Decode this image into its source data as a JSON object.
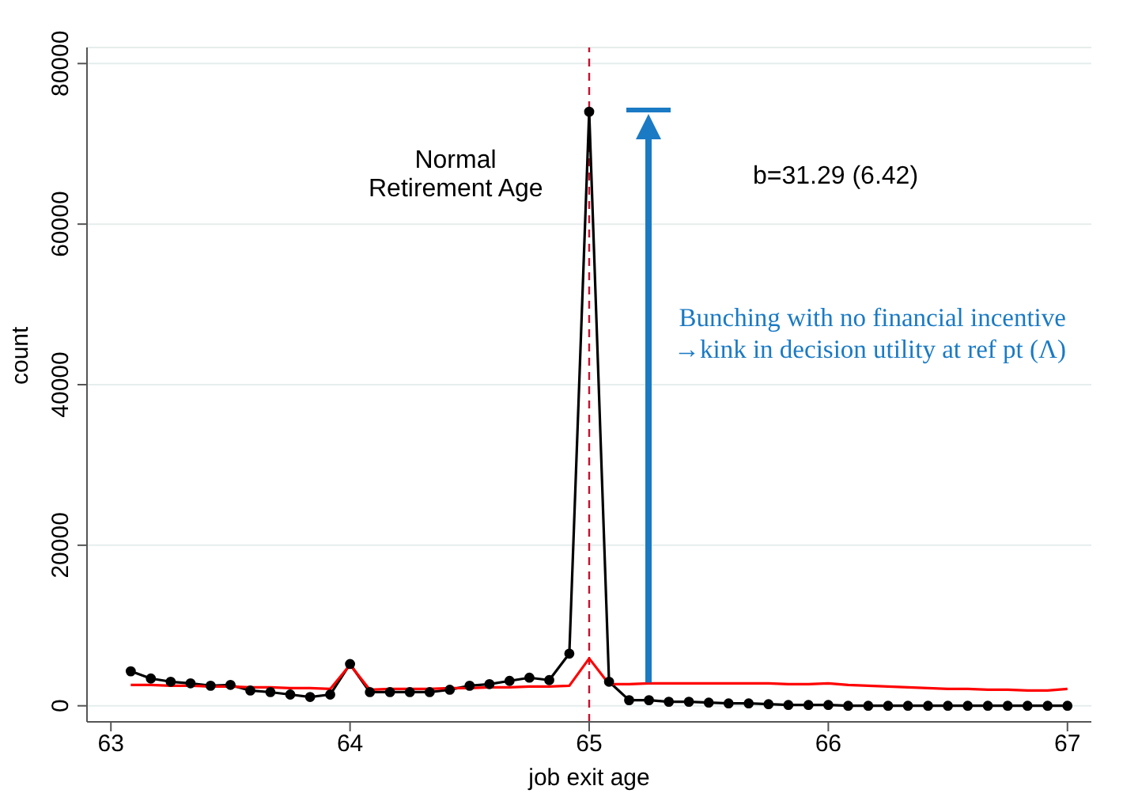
{
  "chart_data": {
    "type": "line",
    "xlabel": "job exit age",
    "ylabel": "count",
    "x": [
      63.083,
      63.167,
      63.25,
      63.333,
      63.417,
      63.5,
      63.583,
      63.667,
      63.75,
      63.833,
      63.917,
      64,
      64.083,
      64.167,
      64.25,
      64.333,
      64.417,
      64.5,
      64.583,
      64.667,
      64.75,
      64.833,
      64.917,
      65,
      65.083,
      65.167,
      65.25,
      65.333,
      65.417,
      65.5,
      65.583,
      65.667,
      65.75,
      65.833,
      65.917,
      66,
      66.083,
      66.167,
      66.25,
      66.333,
      66.417,
      66.5,
      66.583,
      66.667,
      66.75,
      66.833,
      66.917,
      67
    ],
    "series": [
      {
        "color": "#000000",
        "marker": "circle",
        "values": [
          4300,
          3400,
          3000,
          2800,
          2500,
          2600,
          1900,
          1700,
          1400,
          1100,
          1400,
          5200,
          1700,
          1700,
          1700,
          1700,
          2000,
          2500,
          2700,
          3100,
          3500,
          3200,
          6500,
          74000,
          3000,
          700,
          700,
          500,
          500,
          400,
          300,
          300,
          200,
          100,
          100,
          100,
          0,
          0,
          0,
          0,
          0,
          0,
          0,
          0,
          0,
          0,
          0,
          0
        ]
      },
      {
        "color": "#ff0000",
        "marker": "none",
        "values": [
          2600,
          2600,
          2500,
          2500,
          2400,
          2400,
          2300,
          2300,
          2200,
          2200,
          2100,
          5100,
          2000,
          2100,
          2100,
          2100,
          2200,
          2200,
          2300,
          2300,
          2400,
          2400,
          2500,
          5900,
          2700,
          2700,
          2800,
          2800,
          2800,
          2800,
          2800,
          2800,
          2800,
          2700,
          2700,
          2800,
          2600,
          2500,
          2400,
          2300,
          2200,
          2100,
          2100,
          2000,
          2000,
          1900,
          1900,
          2100
        ]
      }
    ],
    "xlim": [
      62.9,
      67.1
    ],
    "xticks": [
      63,
      64,
      65,
      66,
      67
    ],
    "ylim": [
      -2000,
      82000
    ],
    "yticks": [
      0,
      20000,
      40000,
      60000,
      80000
    ],
    "grid": "y",
    "ref_lines": [
      {
        "axis": "x",
        "value": 65,
        "color": "#c8102e",
        "line_style": "dashed"
      }
    ],
    "annotations": [
      "Normal\nRetirement Age",
      "b=31.29 (6.42)",
      "Bunching with no financial incentive\n→kink in decision utility at ref pt (Λ)"
    ]
  }
}
